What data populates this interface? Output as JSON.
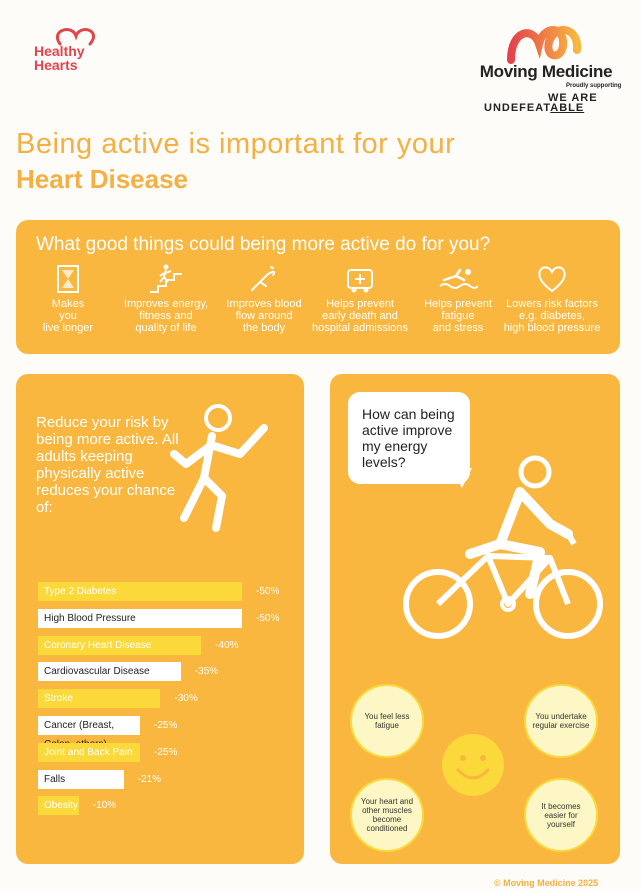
{
  "logos": {
    "healthy_hearts": [
      "Healthy",
      "Hearts"
    ],
    "moving_medicine": "Moving Medicine",
    "proudly": "Proudly supporting",
    "wa_line1": "WE ARE",
    "wa_line2_a": "UNDEFEAT",
    "wa_line2_b": "ABLE"
  },
  "title": {
    "line1": "Being active is important for your",
    "line2": "Heart Disease"
  },
  "benefits": {
    "heading": "What good things could being more active do for you?",
    "items": [
      {
        "icon": "hourglass-icon",
        "text": "Makes\nyou\nlive longer"
      },
      {
        "icon": "climbing-stairs-icon",
        "text": "Improves energy,\nfitness and\nquality of life"
      },
      {
        "icon": "blood-flow-hand-icon",
        "text": "Improves blood\nflow around\nthe body"
      },
      {
        "icon": "ambulance-icon",
        "text": "Helps prevent\nearly death and\nhospital admissions"
      },
      {
        "icon": "swimmer-icon",
        "text": "Helps prevent\nfatigue\nand stress"
      },
      {
        "icon": "heart-icon",
        "text": "Lowers risk factors\ne.g. diabetes,\nhigh blood pressure"
      }
    ]
  },
  "risk": {
    "intro": "Reduce your risk by being more active. All adults keeping physically active reduces your chance of:",
    "chart_data": {
      "type": "bar",
      "categories": [
        "Type 2 Diabetes",
        "High Blood Pressure",
        "Coronary Heart Disease",
        "Cardiovascular Disease",
        "Stroke",
        "Cancer (Breast, Colon, others)",
        "Joint and Back Pain",
        "Falls",
        "Obesity"
      ],
      "values": [
        -50,
        -50,
        -40,
        -35,
        -30,
        -25,
        -25,
        -21,
        -10
      ],
      "labels": [
        "-50%",
        "-50%",
        "-40%",
        "-35%",
        "-30%",
        "-25%",
        "-25%",
        "-21%",
        "-10%"
      ],
      "styles": [
        "y",
        "w",
        "y",
        "w",
        "y",
        "w",
        "y",
        "w",
        "y"
      ],
      "unit": "%"
    }
  },
  "energy": {
    "question": "How can being active improve my energy levels?",
    "circles": [
      "You feel less fatigue",
      "You undertake regular exercise",
      "Your heart and other muscles become conditioned",
      "It becomes easier for yourself"
    ]
  },
  "footer": "© Moving Medicine 2025",
  "colors": {
    "orange": "#f9b740",
    "yellow": "#fcd93a",
    "red": "#e4434c"
  }
}
